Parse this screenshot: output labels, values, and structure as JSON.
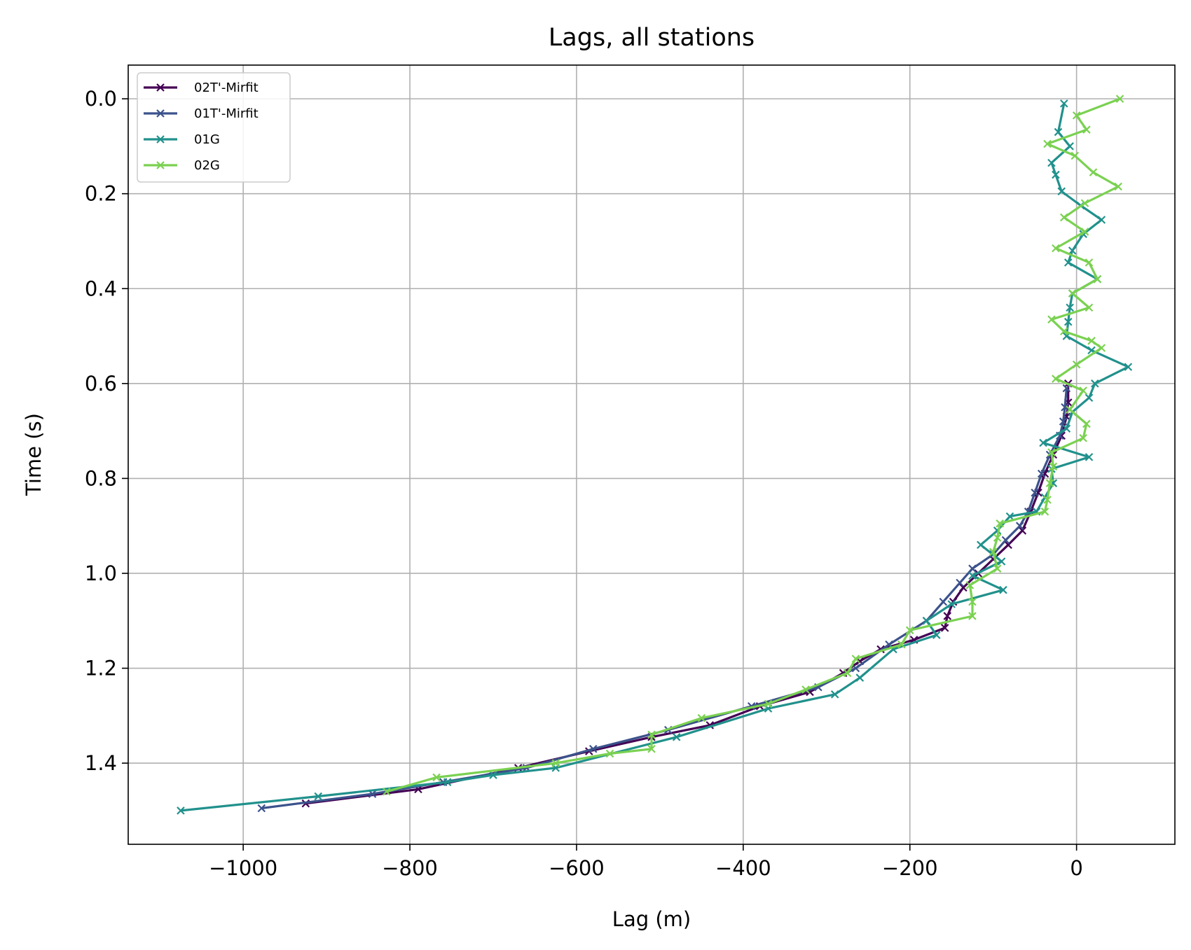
{
  "chart_data": {
    "type": "line",
    "title": "Lags, all stations",
    "xlabel": "Lag (m)",
    "ylabel": "Time (s)",
    "xlim": [
      -1138,
      118
    ],
    "ylim": [
      1.571,
      -0.071
    ],
    "y_inverted": true,
    "grid": true,
    "legend_position": "upper-left",
    "xticks": [
      -1000,
      -800,
      -600,
      -400,
      -200,
      0
    ],
    "xtick_labels": [
      "−1000",
      "−800",
      "−600",
      "−400",
      "−200",
      "0"
    ],
    "yticks": [
      0.0,
      0.2,
      0.4,
      0.6,
      0.8,
      1.0,
      1.2,
      1.4
    ],
    "ytick_labels": [
      "0.0",
      "0.2",
      "0.4",
      "0.6",
      "0.8",
      "1.0",
      "1.2",
      "1.4"
    ],
    "marker": "x",
    "series": [
      {
        "name": "02T'-Mirfit",
        "color": "#440154",
        "points": [
          [
            -10,
            0.6
          ],
          [
            -10,
            0.64
          ],
          [
            -12,
            0.67
          ],
          [
            -18,
            0.71
          ],
          [
            -28,
            0.75
          ],
          [
            -38,
            0.79
          ],
          [
            -46,
            0.83
          ],
          [
            -55,
            0.87
          ],
          [
            -65,
            0.91
          ],
          [
            -82,
            0.94
          ],
          [
            -100,
            0.97
          ],
          [
            -118,
            1.0
          ],
          [
            -136,
            1.03
          ],
          [
            -148,
            1.06
          ],
          [
            -155,
            1.09
          ],
          [
            -158,
            1.115
          ],
          [
            -195,
            1.14
          ],
          [
            -235,
            1.16
          ],
          [
            -260,
            1.185
          ],
          [
            -280,
            1.21
          ],
          [
            -320,
            1.25
          ],
          [
            -380,
            1.28
          ],
          [
            -440,
            1.32
          ],
          [
            -510,
            1.345
          ],
          [
            -585,
            1.375
          ],
          [
            -670,
            1.41
          ],
          [
            -790,
            1.455
          ],
          [
            -925,
            1.485
          ]
        ]
      },
      {
        "name": "01T'-Mirfit",
        "color": "#3b528b",
        "points": [
          [
            -12,
            0.61
          ],
          [
            -14,
            0.65
          ],
          [
            -16,
            0.68
          ],
          [
            -20,
            0.71
          ],
          [
            -32,
            0.75
          ],
          [
            -42,
            0.79
          ],
          [
            -50,
            0.83
          ],
          [
            -58,
            0.87
          ],
          [
            -68,
            0.9
          ],
          [
            -85,
            0.93
          ],
          [
            -100,
            0.96
          ],
          [
            -125,
            0.99
          ],
          [
            -140,
            1.02
          ],
          [
            -160,
            1.06
          ],
          [
            -180,
            1.1
          ],
          [
            -225,
            1.15
          ],
          [
            -265,
            1.2
          ],
          [
            -310,
            1.24
          ],
          [
            -390,
            1.28
          ],
          [
            -490,
            1.33
          ],
          [
            -580,
            1.37
          ],
          [
            -660,
            1.41
          ],
          [
            -760,
            1.44
          ],
          [
            -845,
            1.465
          ],
          [
            -978,
            1.495
          ]
        ]
      },
      {
        "name": "01G",
        "color": "#21918c",
        "points": [
          [
            -15,
            0.01
          ],
          [
            -22,
            0.07
          ],
          [
            -8,
            0.1
          ],
          [
            -30,
            0.135
          ],
          [
            -25,
            0.16
          ],
          [
            -18,
            0.195
          ],
          [
            5,
            0.225
          ],
          [
            30,
            0.255
          ],
          [
            8,
            0.285
          ],
          [
            -5,
            0.32
          ],
          [
            -10,
            0.345
          ],
          [
            25,
            0.38
          ],
          [
            -5,
            0.41
          ],
          [
            -8,
            0.44
          ],
          [
            -10,
            0.47
          ],
          [
            -12,
            0.5
          ],
          [
            18,
            0.53
          ],
          [
            62,
            0.565
          ],
          [
            22,
            0.6
          ],
          [
            15,
            0.63
          ],
          [
            -5,
            0.66
          ],
          [
            -12,
            0.695
          ],
          [
            -40,
            0.725
          ],
          [
            15,
            0.755
          ],
          [
            -30,
            0.78
          ],
          [
            -28,
            0.81
          ],
          [
            -38,
            0.84
          ],
          [
            -48,
            0.87
          ],
          [
            -80,
            0.88
          ],
          [
            -95,
            0.91
          ],
          [
            -115,
            0.94
          ],
          [
            -90,
            0.975
          ],
          [
            -125,
            1.005
          ],
          [
            -88,
            1.035
          ],
          [
            -150,
            1.065
          ],
          [
            -180,
            1.1
          ],
          [
            -168,
            1.13
          ],
          [
            -220,
            1.16
          ],
          [
            -260,
            1.22
          ],
          [
            -290,
            1.255
          ],
          [
            -370,
            1.285
          ],
          [
            -480,
            1.345
          ],
          [
            -625,
            1.41
          ],
          [
            -700,
            1.425
          ],
          [
            -755,
            1.44
          ],
          [
            -910,
            1.47
          ],
          [
            -1075,
            1.5
          ]
        ]
      },
      {
        "name": "02G",
        "color": "#7ad151",
        "points": [
          [
            52,
            0.0
          ],
          [
            0,
            0.035
          ],
          [
            12,
            0.065
          ],
          [
            -35,
            0.095
          ],
          [
            -2,
            0.12
          ],
          [
            20,
            0.155
          ],
          [
            50,
            0.185
          ],
          [
            10,
            0.22
          ],
          [
            -15,
            0.25
          ],
          [
            10,
            0.28
          ],
          [
            -25,
            0.315
          ],
          [
            15,
            0.345
          ],
          [
            25,
            0.38
          ],
          [
            -5,
            0.41
          ],
          [
            15,
            0.44
          ],
          [
            -30,
            0.465
          ],
          [
            -15,
            0.49
          ],
          [
            18,
            0.51
          ],
          [
            30,
            0.525
          ],
          [
            0,
            0.56
          ],
          [
            -25,
            0.59
          ],
          [
            8,
            0.615
          ],
          [
            -8,
            0.655
          ],
          [
            12,
            0.685
          ],
          [
            8,
            0.715
          ],
          [
            -30,
            0.745
          ],
          [
            -28,
            0.775
          ],
          [
            -32,
            0.81
          ],
          [
            -35,
            0.845
          ],
          [
            -38,
            0.87
          ],
          [
            -92,
            0.895
          ],
          [
            -95,
            0.925
          ],
          [
            -100,
            0.955
          ],
          [
            -95,
            0.99
          ],
          [
            -128,
            1.025
          ],
          [
            -125,
            1.06
          ],
          [
            -125,
            1.09
          ],
          [
            -200,
            1.12
          ],
          [
            -210,
            1.15
          ],
          [
            -265,
            1.18
          ],
          [
            -275,
            1.21
          ],
          [
            -325,
            1.245
          ],
          [
            -370,
            1.275
          ],
          [
            -450,
            1.305
          ],
          [
            -510,
            1.34
          ],
          [
            -510,
            1.37
          ],
          [
            -560,
            1.38
          ],
          [
            -625,
            1.4
          ],
          [
            -768,
            1.43
          ],
          [
            -828,
            1.46
          ]
        ]
      }
    ]
  }
}
